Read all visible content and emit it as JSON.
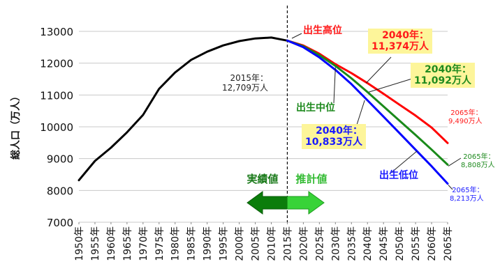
{
  "chart_data": {
    "type": "line",
    "ylabel": "総人口（万人）",
    "ylim": [
      7000,
      13000
    ],
    "yticks": [
      7000,
      8000,
      9000,
      10000,
      11000,
      12000,
      13000
    ],
    "x_tick_labels": [
      "1950年",
      "1955年",
      "1960年",
      "1965年",
      "1970年",
      "1975年",
      "1980年",
      "1985年",
      "1990年",
      "1995年",
      "2000年",
      "2005年",
      "2010年",
      "2015年",
      "2020年",
      "2025年",
      "2030年",
      "2035年",
      "2040年",
      "2045年",
      "2050年",
      "2055年",
      "2060年",
      "2065年"
    ],
    "xlim": [
      1950,
      2065
    ],
    "divider_x": 2015,
    "actual_label": "実績値",
    "projection_label": "推計値",
    "colors": {
      "actual": "#000000",
      "high": "#ff0000",
      "mid": "#1a8a1a",
      "low": "#0000ff",
      "grid": "#c8c8c8",
      "label_box": "#fdf59a",
      "arrow_dark": "#0b7d0b",
      "arrow_light": "#38d338"
    },
    "series": [
      {
        "key": "actual",
        "x": [
          1950,
          1955,
          1960,
          1965,
          1970,
          1975,
          1980,
          1985,
          1990,
          1995,
          2000,
          2005,
          2010,
          2015
        ],
        "values": [
          8320,
          8928,
          9342,
          9828,
          10372,
          11194,
          11706,
          12105,
          12361,
          12557,
          12693,
          12777,
          12806,
          12709
        ]
      },
      {
        "key": "high",
        "name": "出生高位",
        "x": [
          2015,
          2020,
          2025,
          2030,
          2035,
          2040,
          2045,
          2050,
          2055,
          2060,
          2065
        ],
        "values": [
          12709,
          12556,
          12297,
          11968,
          11687,
          11374,
          11039,
          10695,
          10353,
          9975,
          9490
        ]
      },
      {
        "key": "mid",
        "name": "出生中位",
        "x": [
          2015,
          2020,
          2025,
          2030,
          2035,
          2040,
          2045,
          2050,
          2055,
          2060,
          2065
        ],
        "values": [
          12709,
          12532,
          12254,
          11913,
          11522,
          11092,
          10642,
          10192,
          9744,
          9284,
          8808
        ]
      },
      {
        "key": "low",
        "name": "出生低位",
        "x": [
          2015,
          2020,
          2025,
          2030,
          2035,
          2040,
          2045,
          2050,
          2055,
          2060,
          2065
        ],
        "values": [
          12709,
          12500,
          12180,
          11790,
          11340,
          10833,
          10320,
          9800,
          9280,
          8760,
          8213
        ]
      }
    ],
    "annotations": {
      "a2015": {
        "line1": "2015年：",
        "line2": "12,709万人"
      },
      "high2040": {
        "line1": "2040年：",
        "line2": "11,374万人"
      },
      "mid2040": {
        "line1": "2040年：",
        "line2": "11,092万人"
      },
      "low2040": {
        "line1": "2040年：",
        "line2": "10,833万人"
      },
      "high2065": {
        "line1": "2065年：",
        "line2": "9,490万人"
      },
      "mid2065": {
        "line1": "2065年：",
        "line2": "8,808万人"
      },
      "low2065": {
        "line1": "2065年：",
        "line2": "8,213万人"
      }
    }
  }
}
